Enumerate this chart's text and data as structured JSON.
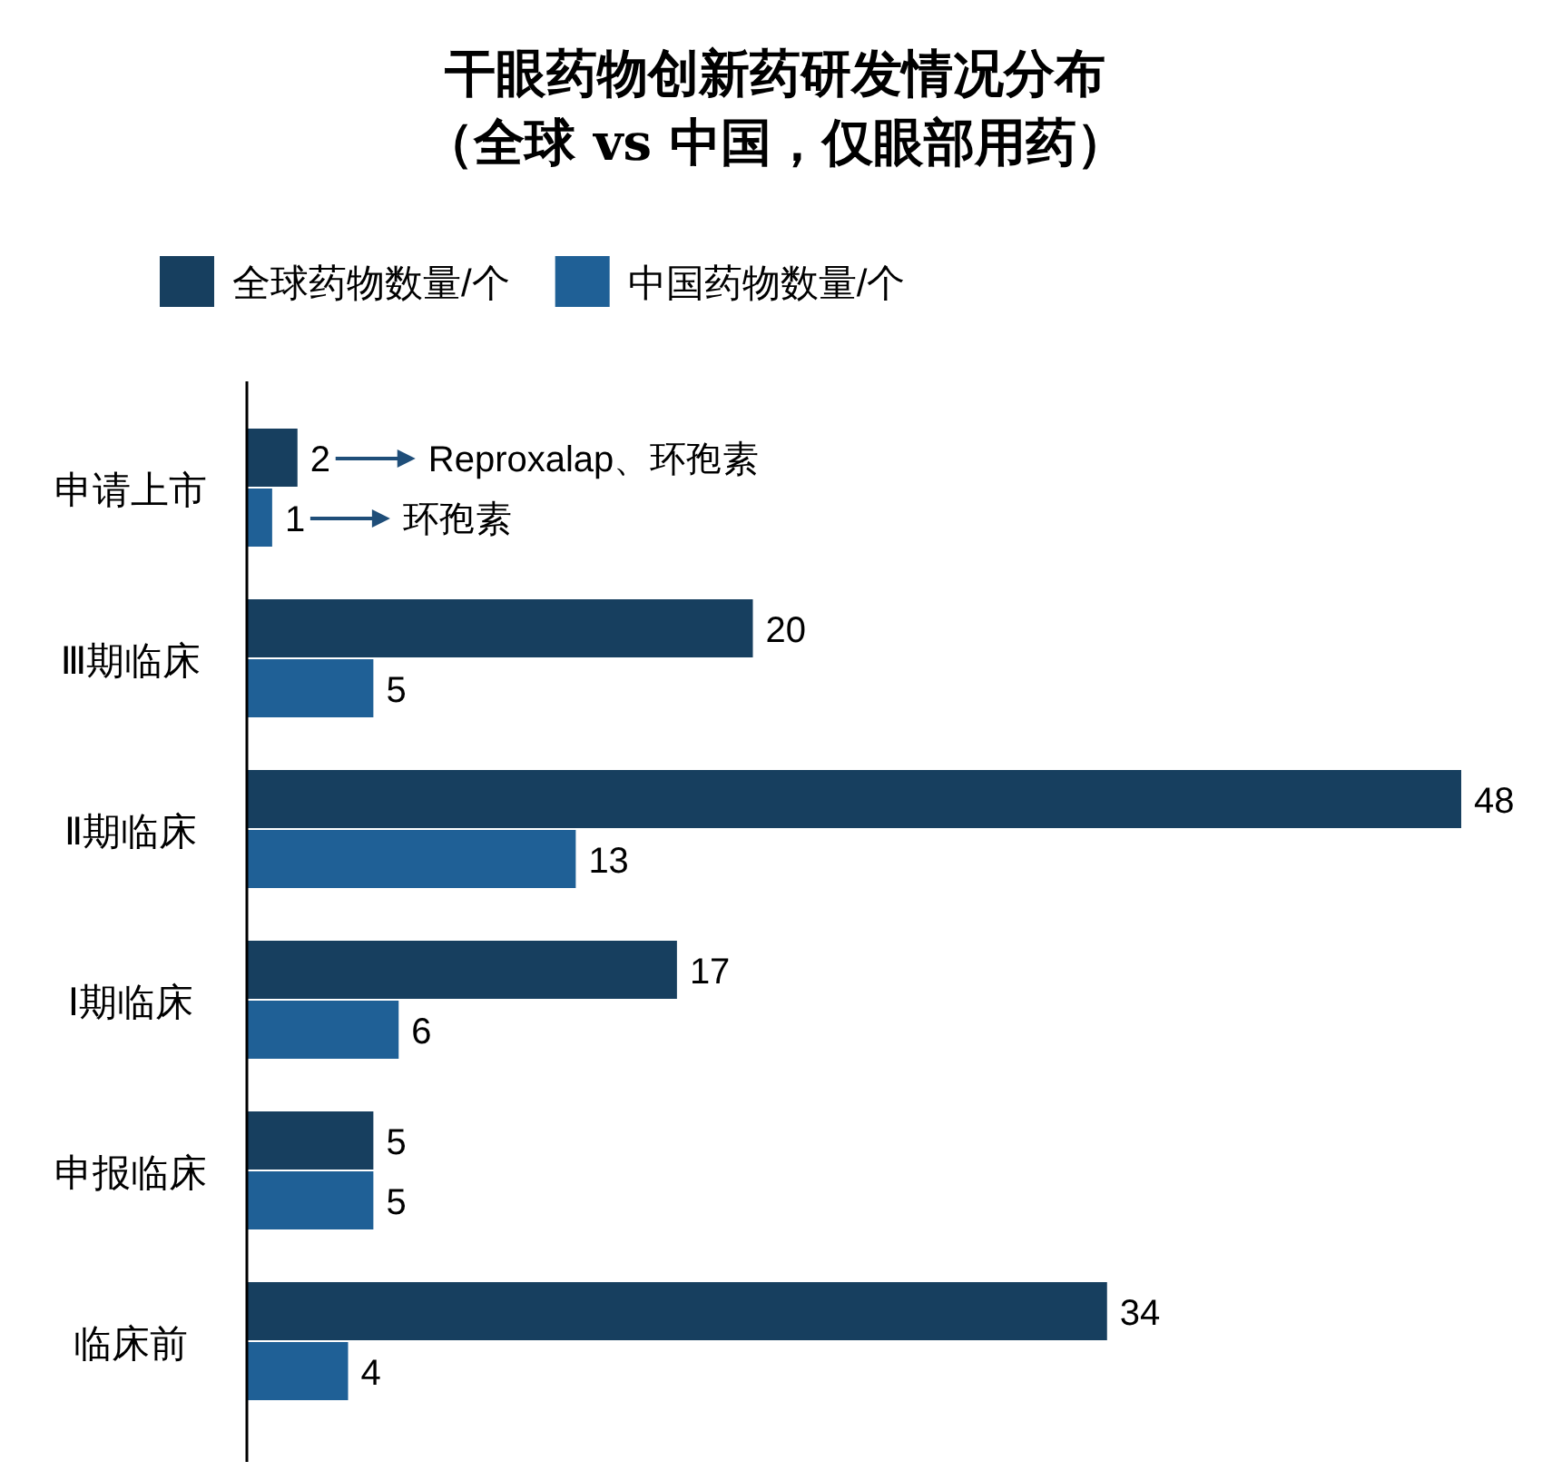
{
  "chart_data": {
    "type": "bar",
    "orientation": "horizontal",
    "title": "干眼药物创新药研发情况分布",
    "subtitle": "（全球 vs 中国，仅眼部用药）",
    "categories": [
      "申请上市",
      "Ⅲ期临床",
      "Ⅱ期临床",
      "Ⅰ期临床",
      "申报临床",
      "临床前"
    ],
    "series": [
      {
        "name": "全球药物数量/个",
        "color": "#173f5f",
        "values": [
          2,
          20,
          48,
          17,
          5,
          34
        ]
      },
      {
        "name": "中国药物数量/个",
        "color": "#1f6096",
        "values": [
          1,
          5,
          13,
          6,
          5,
          4
        ]
      }
    ],
    "data_labels": true,
    "legend": "top left",
    "annotations": [
      "Reproxalap、环孢素",
      "环孢素"
    ]
  }
}
